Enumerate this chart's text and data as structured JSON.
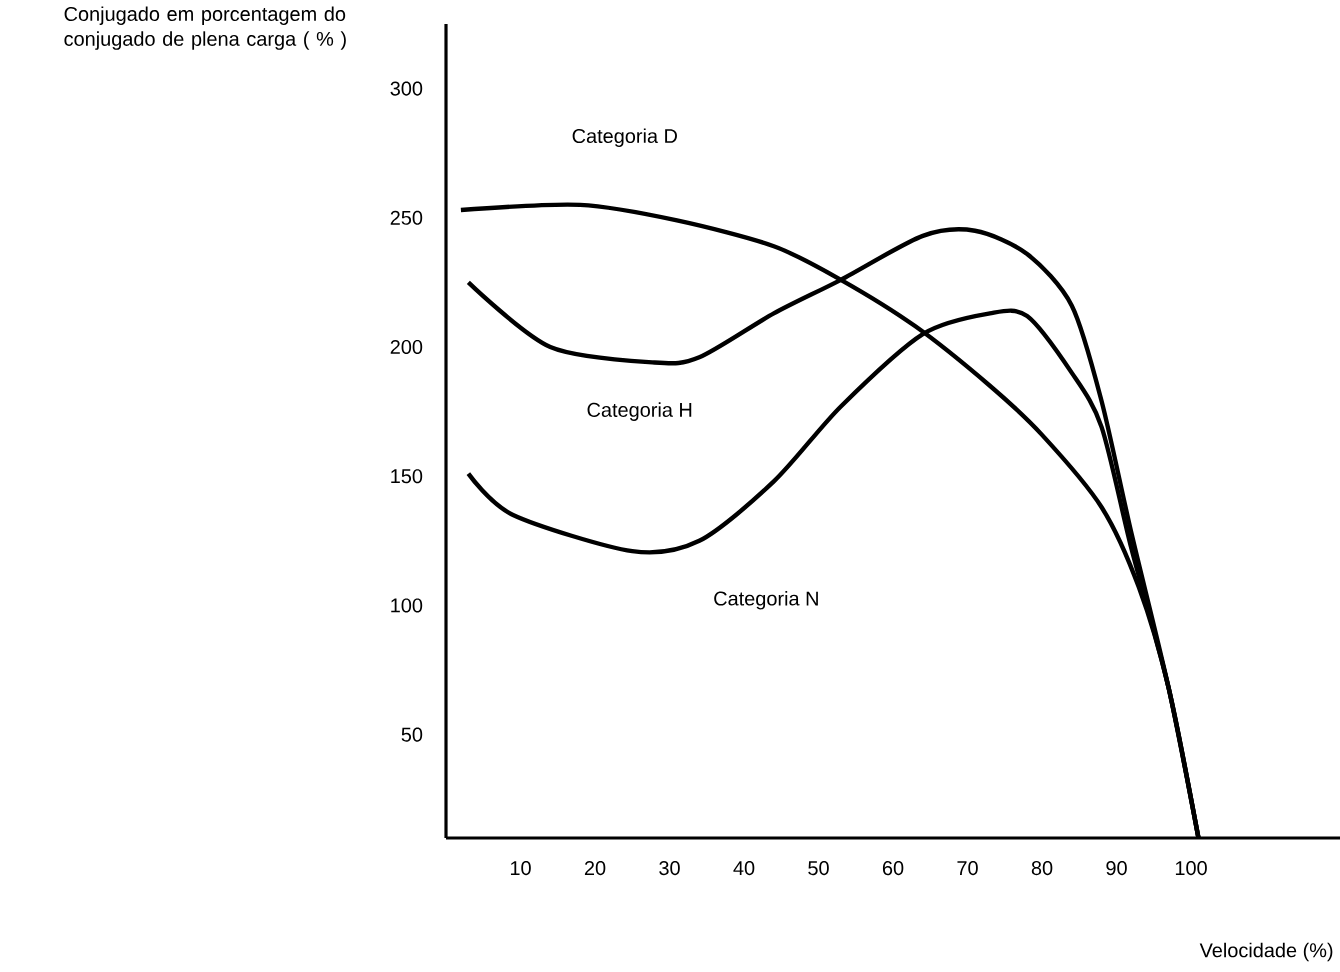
{
  "chart_data": {
    "type": "line",
    "xlabel": "Velocidade (%)",
    "ylabel": "Conjugado em porcentagem do conjugado de plena carga ( % )",
    "xlim": [
      0,
      120
    ],
    "ylim": [
      10,
      325
    ],
    "xticks": [
      10,
      20,
      30,
      40,
      50,
      60,
      70,
      80,
      90,
      100
    ],
    "yticks": [
      50,
      100,
      150,
      200,
      250,
      300
    ],
    "grid": false,
    "legend": false,
    "marker": "none",
    "line_style": "solid",
    "series": [
      {
        "name": "Categoria D",
        "color": "#000000",
        "x": [
          2,
          18,
          31,
          44,
          53,
          63,
          73,
          80,
          88,
          93,
          97,
          101
        ],
        "values": [
          253,
          255,
          249,
          239,
          226,
          208,
          185,
          166,
          138,
          107,
          68,
          10
        ]
      },
      {
        "name": "Categoria H",
        "color": "#000000",
        "x": [
          3,
          14,
          28,
          34,
          44,
          53,
          64,
          71,
          78,
          84,
          88,
          92,
          97,
          101
        ],
        "values": [
          225,
          200,
          194,
          196,
          213,
          226,
          243,
          245,
          236,
          216,
          179,
          128,
          68,
          10
        ]
      },
      {
        "name": "Categoria N",
        "color": "#000000",
        "x": [
          3,
          9,
          25,
          34,
          44,
          53,
          64,
          73,
          78,
          84,
          88,
          92,
          97,
          101
        ],
        "values": [
          151,
          135,
          121,
          125,
          148,
          177,
          205,
          213,
          212,
          190,
          169,
          122,
          68,
          10
        ]
      }
    ]
  }
}
